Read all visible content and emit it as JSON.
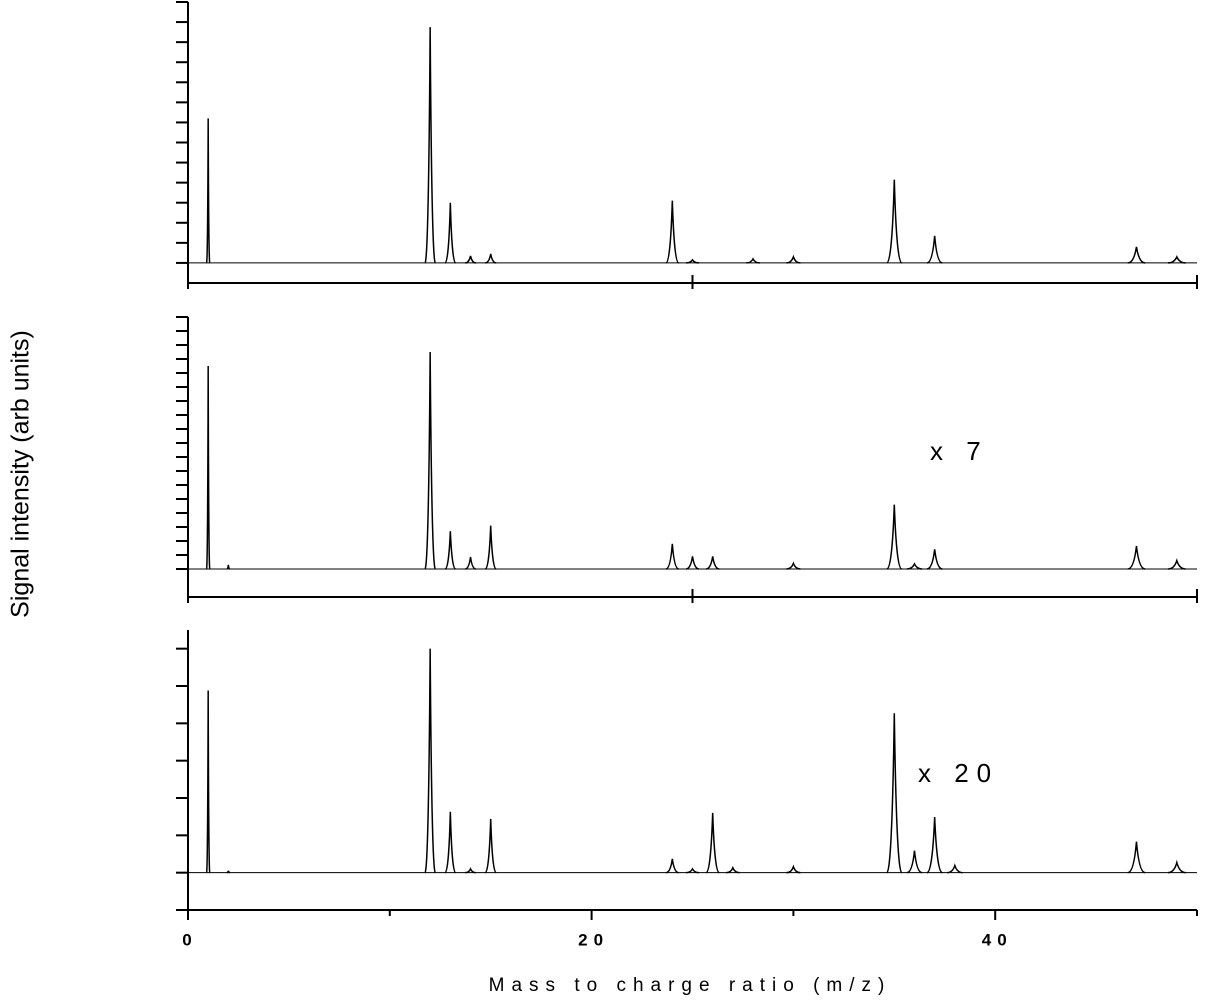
{
  "chart_data": [
    {
      "type": "spectrum",
      "color": "#000000",
      "x": [
        1,
        12,
        13,
        14,
        15,
        24,
        25,
        28,
        30,
        35,
        37,
        47,
        49
      ],
      "values": [
        7.2,
        11.75,
        3.0,
        0.35,
        0.45,
        3.1,
        0.15,
        0.2,
        0.3,
        4.15,
        1.35,
        0.8,
        0.3
      ],
      "xlim": [
        0,
        50
      ],
      "xticks": [
        0,
        25,
        50
      ],
      "ylim": [
        -1,
        13
      ],
      "yticks": [
        0,
        1,
        2,
        3,
        4,
        5,
        6,
        7,
        8,
        9,
        10,
        11,
        12,
        13
      ]
    },
    {
      "type": "spectrum",
      "color": "#000000",
      "annotation": "x 7",
      "x": [
        1,
        2,
        12,
        13,
        14,
        15,
        24,
        25,
        26,
        30,
        35,
        36,
        37,
        47,
        49
      ],
      "values": [
        7.25,
        0.15,
        7.75,
        1.35,
        0.43,
        1.55,
        0.9,
        0.45,
        0.45,
        0.2,
        2.3,
        0.18,
        0.7,
        0.82,
        0.3
      ],
      "xlim": [
        0,
        50
      ],
      "xticks": [
        0,
        25,
        50
      ],
      "ylim": [
        -1,
        9
      ],
      "yticks": [
        0,
        0.5,
        1,
        1.5,
        2,
        2.5,
        3,
        3.5,
        4,
        4.5,
        5,
        5.5,
        6,
        6.5,
        7,
        7.5,
        8,
        8.5,
        9
      ],
      "ylabel": "Signal intensity (arb units)"
    },
    {
      "type": "spectrum",
      "color": "#000000",
      "annotation": "x 20",
      "x": [
        1,
        2,
        12,
        13,
        14,
        15,
        24,
        25,
        26,
        27,
        30,
        35,
        36,
        37,
        38,
        47,
        49
      ],
      "values": [
        4.88,
        0.05,
        6.0,
        1.63,
        0.1,
        1.44,
        0.37,
        0.1,
        1.6,
        0.13,
        0.16,
        4.27,
        0.59,
        1.49,
        0.19,
        0.83,
        0.27
      ],
      "xlim": [
        0,
        50
      ],
      "xticks": [
        0,
        20,
        40
      ],
      "xminor": [
        10,
        30,
        50
      ],
      "ylim": [
        -1,
        6.5
      ],
      "yticks": [
        -1,
        0,
        1,
        2,
        3,
        4,
        5,
        6
      ],
      "xlabel": "Mass to charge ratio (m/z)"
    }
  ]
}
